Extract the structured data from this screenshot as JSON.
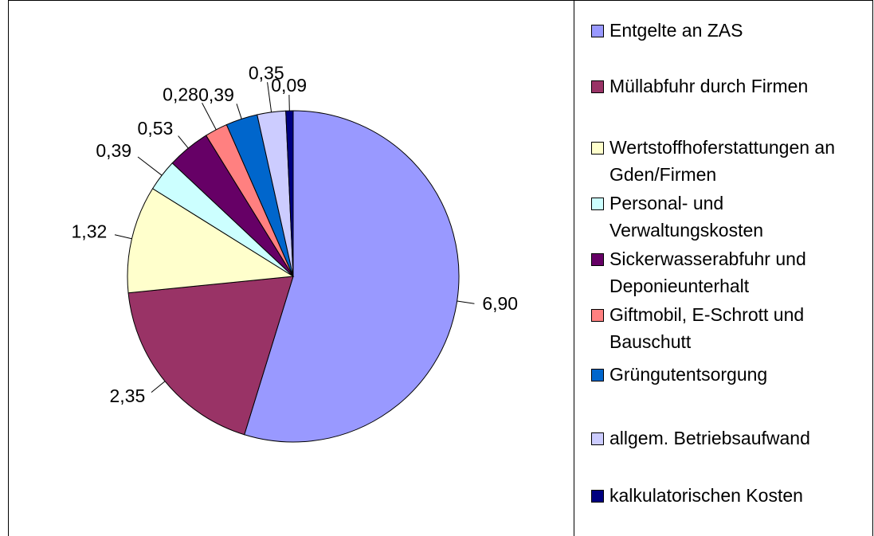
{
  "chart_data": {
    "type": "pie",
    "categories": [
      "Entgelte an ZAS",
      "Müllabfuhr durch Firmen",
      "Wertstoffhoferstattungen an Gden/Firmen",
      "Personal- und Verwaltungskosten",
      "Sickerwasserabfuhr und Deponieunterhalt",
      "Giftmobil, E-Schrott und Bauschutt",
      "Grüngutentsorgung",
      "allgem. Betriebsaufwand",
      "kalkulatorischen Kosten"
    ],
    "values": [
      6.9,
      2.35,
      1.32,
      0.39,
      0.53,
      0.28,
      0.39,
      0.35,
      0.09
    ],
    "value_labels": [
      "6,90",
      "2,35",
      "1,32",
      "0,39",
      "0,53",
      "0,28",
      "0,39",
      "0,35",
      "0,09"
    ],
    "colors": [
      "#9999ff",
      "#993366",
      "#ffffcc",
      "#ccffff",
      "#660066",
      "#ff8080",
      "#0066cc",
      "#ccccff",
      "#000080"
    ],
    "legend": "right"
  }
}
